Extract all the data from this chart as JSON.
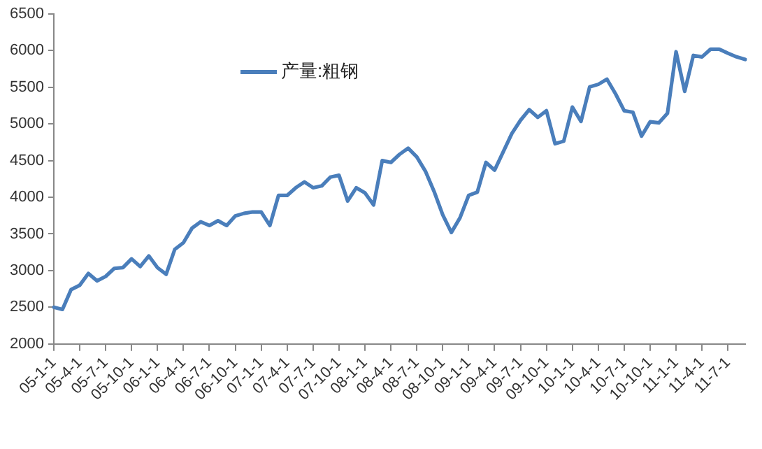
{
  "chart_data": {
    "type": "line",
    "categories": [
      "05-1-1",
      null,
      null,
      "05-4-1",
      null,
      null,
      "05-7-1",
      null,
      null,
      "05-10-1",
      null,
      null,
      "06-1-1",
      null,
      null,
      "06-4-1",
      null,
      null,
      "06-7-1",
      null,
      null,
      "06-10-1",
      null,
      null,
      "07-1-1",
      null,
      null,
      "07-4-1",
      null,
      null,
      "07-7-1",
      null,
      null,
      "07-10-1",
      null,
      null,
      "08-1-1",
      null,
      null,
      "08-4-1",
      null,
      null,
      "08-7-1",
      null,
      null,
      "08-10-1",
      null,
      null,
      "09-1-1",
      null,
      null,
      "09-4-1",
      null,
      null,
      "09-7-1",
      null,
      null,
      "09-10-1",
      null,
      null,
      "10-1-1",
      null,
      null,
      "10-4-1",
      null,
      null,
      "10-7-1",
      null,
      null,
      "10-10-1",
      null,
      null,
      "11-1-1",
      null,
      null,
      "11-4-1",
      null,
      null,
      "11-7-1",
      null,
      null
    ],
    "series": [
      {
        "name": "产量:粗钢",
        "color": "#4a7ebb",
        "values": [
          2500,
          2470,
          2740,
          2800,
          2960,
          2860,
          2920,
          3030,
          3040,
          3160,
          3055,
          3200,
          3040,
          2950,
          3290,
          3380,
          3580,
          3665,
          3615,
          3680,
          3615,
          3745,
          3780,
          3800,
          3800,
          3615,
          4025,
          4025,
          4130,
          4210,
          4130,
          4155,
          4275,
          4300,
          3950,
          4130,
          4060,
          3895,
          4500,
          4475,
          4585,
          4670,
          4550,
          4355,
          4080,
          3760,
          3520,
          3720,
          4025,
          4070,
          4475,
          4370,
          4620,
          4870,
          5050,
          5195,
          5090,
          5180,
          4730,
          4765,
          5230,
          5035,
          5505,
          5540,
          5610,
          5410,
          5180,
          5160,
          4835,
          5030,
          5015,
          5145,
          5985,
          5445,
          5935,
          5915,
          6020,
          6020,
          5965,
          5915,
          5880
        ]
      }
    ],
    "ylim": [
      2000,
      6500
    ],
    "yticks": [
      2000,
      2500,
      3000,
      3500,
      4000,
      4500,
      5000,
      5500,
      6000,
      6500
    ],
    "grid": false,
    "legend": "top left",
    "marker": "none",
    "line_style": "solid"
  }
}
